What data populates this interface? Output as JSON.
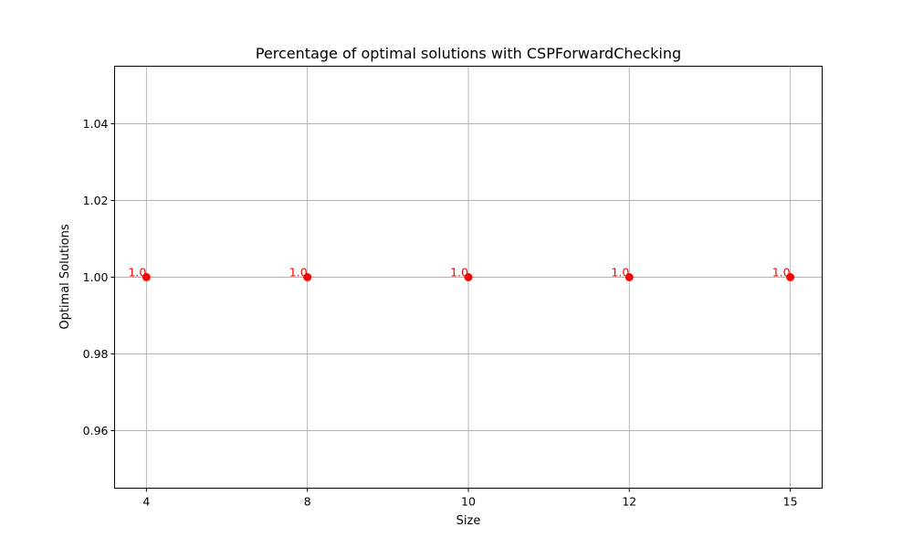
{
  "chart_data": {
    "type": "scatter",
    "title": "Percentage of optimal solutions with CSPForwardChecking",
    "xlabel": "Size",
    "ylabel": "Optimal Solutions",
    "x_categories": [
      "4",
      "8",
      "10",
      "12",
      "15"
    ],
    "y_ticks": [
      "0.96",
      "0.98",
      "1.00",
      "1.02",
      "1.04"
    ],
    "ylim": [
      0.945,
      1.055
    ],
    "grid": true,
    "color": "#ff0000",
    "series": [
      {
        "points": [
          {
            "x": "4",
            "y": 1.0,
            "label": "1.0"
          },
          {
            "x": "8",
            "y": 1.0,
            "label": "1.0"
          },
          {
            "x": "10",
            "y": 1.0,
            "label": "1.0"
          },
          {
            "x": "12",
            "y": 1.0,
            "label": "1.0"
          },
          {
            "x": "15",
            "y": 1.0,
            "label": "1.0"
          }
        ]
      }
    ]
  }
}
